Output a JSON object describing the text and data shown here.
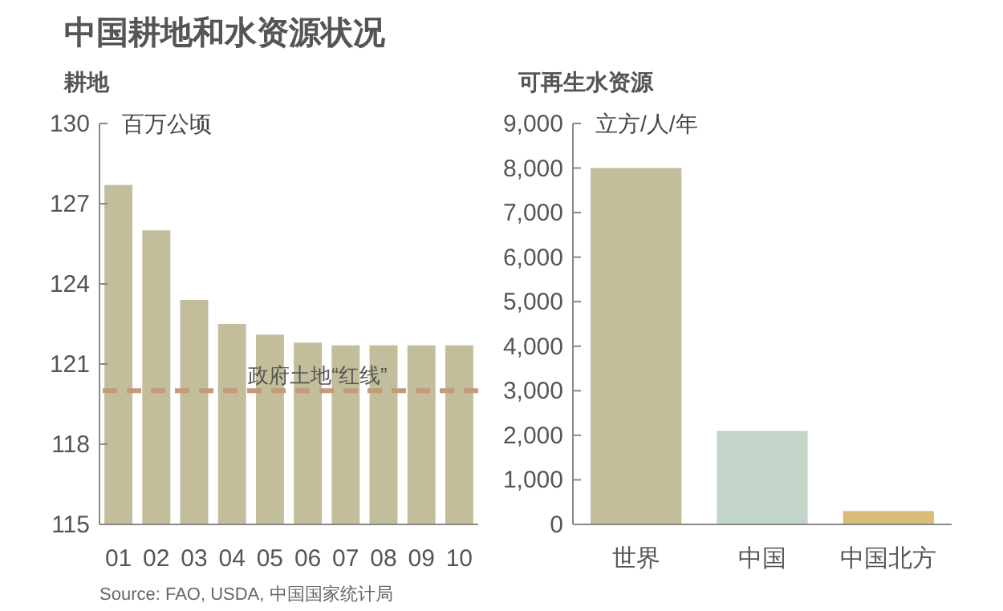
{
  "chart_data": [
    {
      "type": "bar",
      "title": "中国耕地和水资源状况",
      "subtitle": "耕地",
      "ylabel": "百万公顷",
      "categories": [
        "01",
        "02",
        "03",
        "04",
        "05",
        "06",
        "07",
        "08",
        "09",
        "10"
      ],
      "series": [
        {
          "color": "#c2bd9a",
          "values": [
            127.7,
            126.0,
            123.4,
            122.5,
            122.1,
            121.8,
            121.7,
            121.7,
            121.7,
            121.7
          ]
        }
      ],
      "ylim": [
        115,
        130
      ],
      "yticks": [
        115,
        118,
        121,
        124,
        127,
        130
      ],
      "ref_lines": [
        {
          "axis": "y",
          "value": 120,
          "label": "政府土地“红线”",
          "color": "#c49a78",
          "line_style": "dashed"
        }
      ],
      "annotations": [
        "Source: FAO, USDA, 中国国家统计局"
      ]
    },
    {
      "type": "bar",
      "title": "可再生水资源",
      "ylabel": "立方/人/年",
      "categories": [
        "世界",
        "中国",
        "中国北方"
      ],
      "series": [
        {
          "colors": [
            "#c2bd9a",
            "#c3d5c9",
            "#d9bb7a"
          ],
          "values": [
            8000,
            2100,
            300
          ]
        }
      ],
      "ylim": [
        0,
        9000
      ],
      "yticks": [
        {
          "value": 0,
          "label": "0"
        },
        {
          "value": 1000,
          "label": "1,000"
        },
        {
          "value": 2000,
          "label": "2,000"
        },
        {
          "value": 3000,
          "label": "3,000"
        },
        {
          "value": 4000,
          "label": "4,000"
        },
        {
          "value": 5000,
          "label": "5,000"
        },
        {
          "value": 6000,
          "label": "6,000"
        },
        {
          "value": 7000,
          "label": "7,000"
        },
        {
          "value": 8000,
          "label": "8,000"
        },
        {
          "value": 9000,
          "label": "9,000"
        }
      ]
    }
  ]
}
